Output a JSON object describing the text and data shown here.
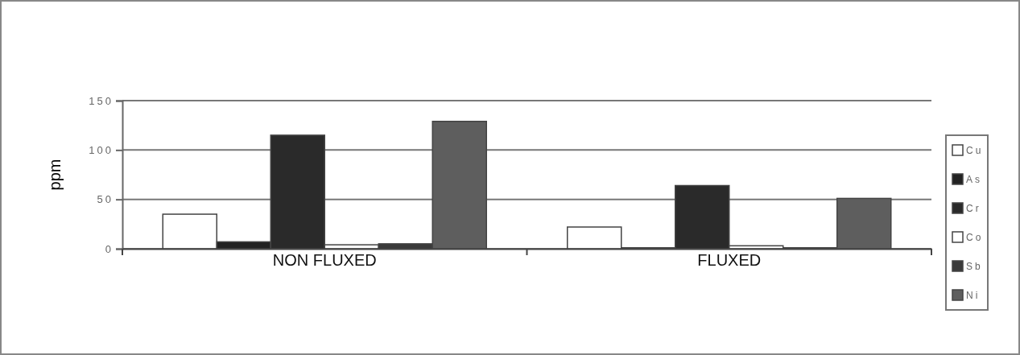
{
  "chart_data": {
    "type": "bar",
    "ylabel": "ppm",
    "categories": [
      "NON FLUXED",
      "FLUXED"
    ],
    "series": [
      {
        "name": "Cu",
        "color": "#ffffff",
        "values": [
          35,
          22
        ]
      },
      {
        "name": "As",
        "color": "#222222",
        "values": [
          7,
          1
        ]
      },
      {
        "name": "Cr",
        "color": "#2a2a2a",
        "values": [
          115,
          64
        ]
      },
      {
        "name": "Co",
        "color": "#ffffff",
        "values": [
          4,
          3
        ]
      },
      {
        "name": "Sb",
        "color": "#3a3a3a",
        "values": [
          5,
          1
        ]
      },
      {
        "name": "Ni",
        "color": "#5e5e5e",
        "values": [
          129,
          51
        ]
      }
    ],
    "ylim": [
      0,
      150
    ],
    "yticks": [
      0,
      50,
      100,
      150
    ],
    "grid": "y",
    "legend": "right"
  }
}
